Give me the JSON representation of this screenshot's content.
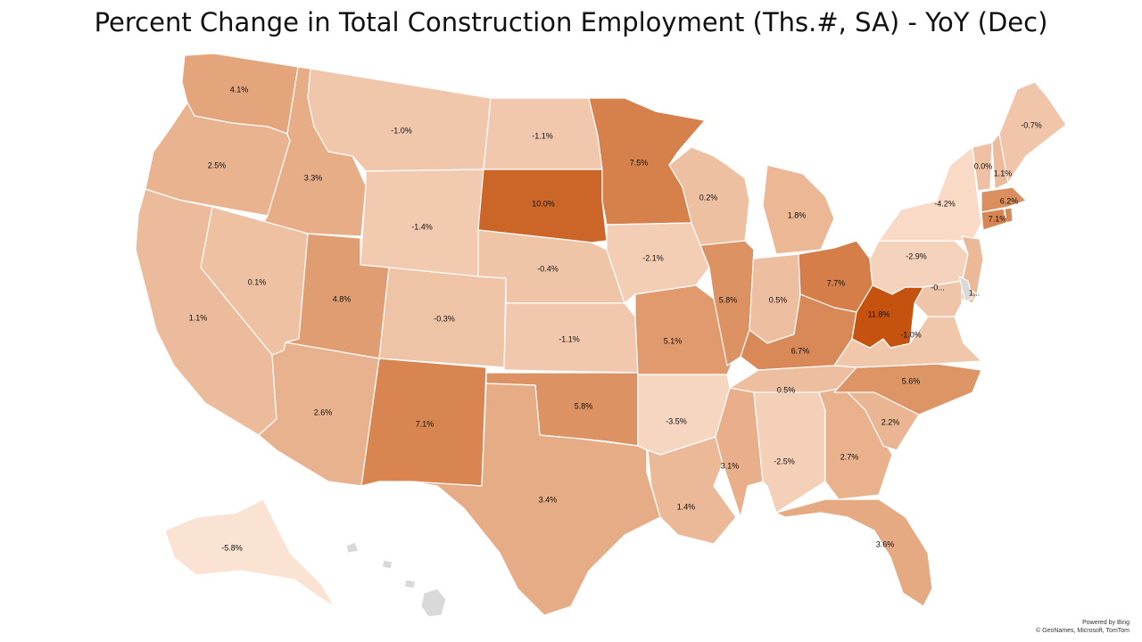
{
  "title": "Percent Change in Total Construction Employment (Ths.#, SA) - YoY (Dec)",
  "attribution": {
    "powered_by": "Powered by Bing",
    "copyright": "© GeoNames, Microsoft, TomTom"
  },
  "color_scale": {
    "low": "#fbe3d3",
    "mid": "#e8b08b",
    "high": "#c5530f",
    "min_value": -5.8,
    "max_value": 11.8
  },
  "map_data": {
    "type": "choropleth",
    "unit": "%",
    "states": [
      {
        "state": "Washington",
        "value": 4.1,
        "label": "4.1%"
      },
      {
        "state": "Oregon",
        "value": 2.5,
        "label": "2.5%"
      },
      {
        "state": "California",
        "value": 1.1,
        "label": "1.1%"
      },
      {
        "state": "Idaho",
        "value": 3.3,
        "label": "3.3%"
      },
      {
        "state": "Nevada",
        "value": 0.1,
        "label": "0.1%"
      },
      {
        "state": "Montana",
        "value": -1.0,
        "label": "-1.0%"
      },
      {
        "state": "Wyoming",
        "value": -1.4,
        "label": "-1.4%"
      },
      {
        "state": "Utah",
        "value": 4.8,
        "label": "4.8%"
      },
      {
        "state": "Arizona",
        "value": 2.6,
        "label": "2.6%"
      },
      {
        "state": "Colorado",
        "value": -0.3,
        "label": "-0.3%"
      },
      {
        "state": "New Mexico",
        "value": 7.1,
        "label": "7.1%"
      },
      {
        "state": "North Dakota",
        "value": -1.1,
        "label": "-1.1%"
      },
      {
        "state": "South Dakota",
        "value": 10.0,
        "label": "10.0%"
      },
      {
        "state": "Nebraska",
        "value": -0.4,
        "label": "-0.4%"
      },
      {
        "state": "Kansas",
        "value": -1.1,
        "label": "-1.1%"
      },
      {
        "state": "Oklahoma",
        "value": 5.8,
        "label": "5.8%"
      },
      {
        "state": "Texas",
        "value": 3.4,
        "label": "3.4%"
      },
      {
        "state": "Minnesota",
        "value": 7.5,
        "label": "7.5%"
      },
      {
        "state": "Iowa",
        "value": -2.1,
        "label": "-2.1%"
      },
      {
        "state": "Missouri",
        "value": 5.1,
        "label": "5.1%"
      },
      {
        "state": "Arkansas",
        "value": -3.5,
        "label": "-3.5%"
      },
      {
        "state": "Louisiana",
        "value": 1.4,
        "label": "1.4%"
      },
      {
        "state": "Wisconsin",
        "value": 0.2,
        "label": "0.2%"
      },
      {
        "state": "Illinois",
        "value": 5.8,
        "label": "5.8%"
      },
      {
        "state": "Michigan",
        "value": 1.8,
        "label": "1.8%"
      },
      {
        "state": "Indiana",
        "value": 0.5,
        "label": "0.5%"
      },
      {
        "state": "Ohio",
        "value": 7.7,
        "label": "7.7%"
      },
      {
        "state": "Kentucky",
        "value": 6.7,
        "label": "6.7%"
      },
      {
        "state": "Tennessee",
        "value": 0.5,
        "label": "0.5%"
      },
      {
        "state": "Mississippi",
        "value": 3.1,
        "label": "3.1%"
      },
      {
        "state": "Alabama",
        "value": -2.5,
        "label": "-2.5%"
      },
      {
        "state": "Georgia",
        "value": 2.7,
        "label": "2.7%"
      },
      {
        "state": "Florida",
        "value": 3.6,
        "label": "3.6%"
      },
      {
        "state": "South Carolina",
        "value": 2.2,
        "label": "2.2%"
      },
      {
        "state": "North Carolina",
        "value": 5.6,
        "label": "5.6%"
      },
      {
        "state": "Virginia",
        "value": -1.0,
        "label": "-1.0%"
      },
      {
        "state": "West Virginia",
        "value": 11.8,
        "label": "11.8%"
      },
      {
        "state": "Pennsylvania",
        "value": -2.9,
        "label": "-2.9%"
      },
      {
        "state": "New York",
        "value": -4.2,
        "label": "-4.2%"
      },
      {
        "state": "Vermont",
        "value": 0.0,
        "label": "0.0%"
      },
      {
        "state": "New Hampshire",
        "value": 1.1,
        "label": "1.1%"
      },
      {
        "state": "Maine",
        "value": -0.7,
        "label": "-0.7%"
      },
      {
        "state": "Massachusetts",
        "value": 6.2,
        "label": "6.2%"
      },
      {
        "state": "Connecticut",
        "value": 7.1,
        "label": "7.1%"
      },
      {
        "state": "Maryland",
        "value": null,
        "label": "-0..."
      },
      {
        "state": "Delaware",
        "value": null,
        "label": "1..."
      },
      {
        "state": "New Jersey",
        "value": null,
        "label": ""
      },
      {
        "state": "Rhode Island",
        "value": null,
        "label": ""
      },
      {
        "state": "Alaska",
        "value": -5.8,
        "label": "-5.8%"
      },
      {
        "state": "Hawaii",
        "value": null,
        "label": ""
      }
    ]
  }
}
